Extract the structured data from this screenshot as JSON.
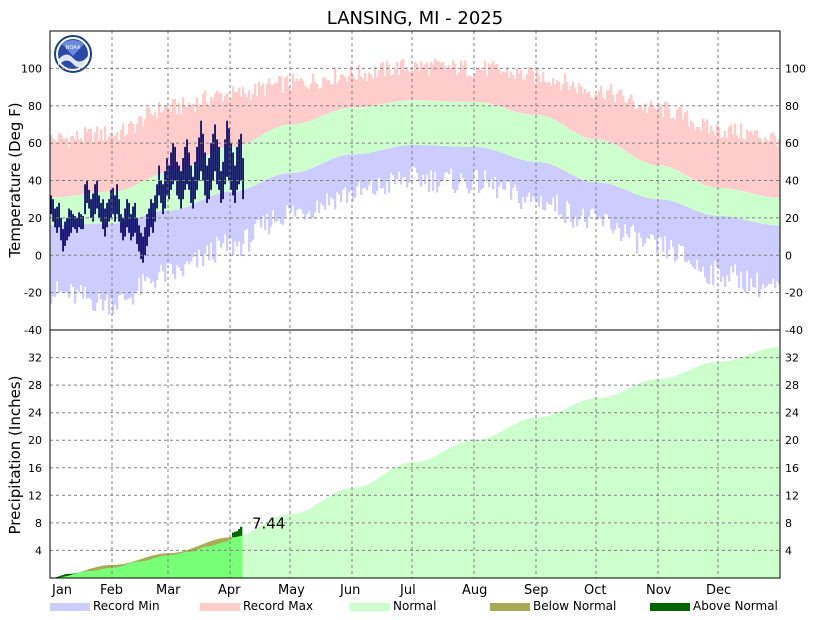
{
  "title": "LANSING, MI - 2025",
  "logo_text": "NOAA",
  "colors": {
    "record_min": "#ccccff",
    "record_max": "#ffcccc",
    "normal": "#ccffcc",
    "observed_temp": "#000066",
    "below_normal": "#aaaa55",
    "above_normal": "#006600",
    "precip_observed": "#77ff77"
  },
  "chart_data": [
    {
      "type": "bar",
      "name": "temperature",
      "ylabel": "Temperature (Deg F)",
      "ylim": [
        -40,
        120
      ],
      "yticks": [
        -40,
        -20,
        0,
        20,
        40,
        60,
        80,
        100
      ],
      "grid": true,
      "months": [
        "Jan",
        "Feb",
        "Mar",
        "Apr",
        "May",
        "Jun",
        "Jul",
        "Aug",
        "Sep",
        "Oct",
        "Nov",
        "Dec"
      ],
      "normal_high_anchors": [
        [
          1,
          31
        ],
        [
          32,
          34
        ],
        [
          60,
          44
        ],
        [
          91,
          58
        ],
        [
          121,
          70
        ],
        [
          152,
          79
        ],
        [
          182,
          83
        ],
        [
          213,
          82
        ],
        [
          244,
          75
        ],
        [
          274,
          62
        ],
        [
          305,
          48
        ],
        [
          335,
          36
        ],
        [
          365,
          31
        ]
      ],
      "normal_low_anchors": [
        [
          1,
          16
        ],
        [
          32,
          17
        ],
        [
          60,
          24
        ],
        [
          91,
          34
        ],
        [
          121,
          44
        ],
        [
          152,
          54
        ],
        [
          182,
          59
        ],
        [
          213,
          58
        ],
        [
          244,
          50
        ],
        [
          274,
          39
        ],
        [
          305,
          30
        ],
        [
          335,
          21
        ],
        [
          365,
          16
        ]
      ],
      "record_high_anchors": [
        [
          1,
          62
        ],
        [
          32,
          65
        ],
        [
          60,
          79
        ],
        [
          91,
          86
        ],
        [
          121,
          92
        ],
        [
          152,
          97
        ],
        [
          182,
          101
        ],
        [
          213,
          100
        ],
        [
          244,
          96
        ],
        [
          274,
          88
        ],
        [
          305,
          78
        ],
        [
          335,
          67
        ],
        [
          365,
          63
        ]
      ],
      "record_low_anchors": [
        [
          1,
          -20
        ],
        [
          32,
          -25
        ],
        [
          60,
          -10
        ],
        [
          91,
          5
        ],
        [
          121,
          23
        ],
        [
          152,
          33
        ],
        [
          182,
          41
        ],
        [
          213,
          39
        ],
        [
          244,
          29
        ],
        [
          274,
          18
        ],
        [
          305,
          4
        ],
        [
          335,
          -10
        ],
        [
          365,
          -18
        ]
      ],
      "observed_highs": [
        32,
        30,
        25,
        26,
        28,
        20,
        14,
        18,
        20,
        25,
        24,
        22,
        21,
        20,
        23,
        22,
        21,
        38,
        40,
        35,
        30,
        33,
        38,
        40,
        32,
        28,
        30,
        25,
        28,
        30,
        35,
        36,
        32,
        38,
        30,
        22,
        20,
        25,
        30,
        28,
        22,
        26,
        28,
        20,
        16,
        12,
        10,
        15,
        22,
        25,
        30,
        28,
        32,
        38,
        48,
        40,
        38,
        45,
        52,
        48,
        55,
        60,
        58,
        50,
        48,
        45,
        52,
        58,
        62,
        55,
        48,
        42,
        50,
        58,
        63,
        72,
        65,
        55,
        48,
        52,
        60,
        65,
        70,
        62,
        58,
        45,
        50,
        62,
        72,
        68,
        60,
        55,
        48,
        58,
        62,
        65,
        52
      ],
      "observed_lows": [
        22,
        18,
        15,
        12,
        15,
        8,
        2,
        5,
        8,
        10,
        12,
        15,
        14,
        12,
        15,
        14,
        14,
        22,
        28,
        25,
        20,
        18,
        22,
        25,
        20,
        18,
        14,
        10,
        15,
        18,
        20,
        22,
        18,
        22,
        18,
        12,
        8,
        10,
        15,
        12,
        8,
        10,
        12,
        6,
        2,
        -2,
        -4,
        0,
        5,
        10,
        15,
        12,
        18,
        25,
        32,
        28,
        22,
        25,
        32,
        30,
        35,
        38,
        40,
        32,
        30,
        25,
        30,
        35,
        38,
        35,
        28,
        25,
        30,
        35,
        40,
        45,
        40,
        32,
        28,
        30,
        35,
        40,
        45,
        38,
        35,
        28,
        30,
        38,
        42,
        40,
        35,
        32,
        28,
        35,
        38,
        40,
        30
      ]
    },
    {
      "type": "area",
      "name": "precipitation",
      "ylabel": "Precipitation (Inches)",
      "ylim": [
        0,
        36
      ],
      "yticks": [
        4,
        8,
        12,
        16,
        20,
        24,
        28,
        32
      ],
      "grid": true,
      "normal_cumulative_anchors": [
        [
          1,
          0
        ],
        [
          32,
          1.9
        ],
        [
          60,
          3.6
        ],
        [
          91,
          5.9
        ],
        [
          121,
          9.3
        ],
        [
          152,
          13.1
        ],
        [
          182,
          16.8
        ],
        [
          213,
          20.0
        ],
        [
          244,
          23.3
        ],
        [
          274,
          26.1
        ],
        [
          305,
          28.9
        ],
        [
          335,
          31.4
        ],
        [
          365,
          33.5
        ]
      ],
      "observed_cumulative_anchors": [
        [
          1,
          0
        ],
        [
          10,
          0.6
        ],
        [
          20,
          1.0
        ],
        [
          32,
          1.5
        ],
        [
          45,
          2.4
        ],
        [
          60,
          3.3
        ],
        [
          70,
          3.8
        ],
        [
          80,
          4.6
        ],
        [
          88,
          5.2
        ],
        [
          91,
          5.6
        ],
        [
          92,
          6.6
        ],
        [
          94,
          6.8
        ],
        [
          96,
          7.44
        ]
      ],
      "ytd_label": "7.44"
    }
  ],
  "legend": [
    {
      "label": "Record Min",
      "color_key": "record_min"
    },
    {
      "label": "Record Max",
      "color_key": "record_max"
    },
    {
      "label": "Normal",
      "color_key": "normal"
    },
    {
      "label": "Below Normal",
      "color_key": "below_normal"
    },
    {
      "label": "Above Normal",
      "color_key": "above_normal"
    }
  ]
}
